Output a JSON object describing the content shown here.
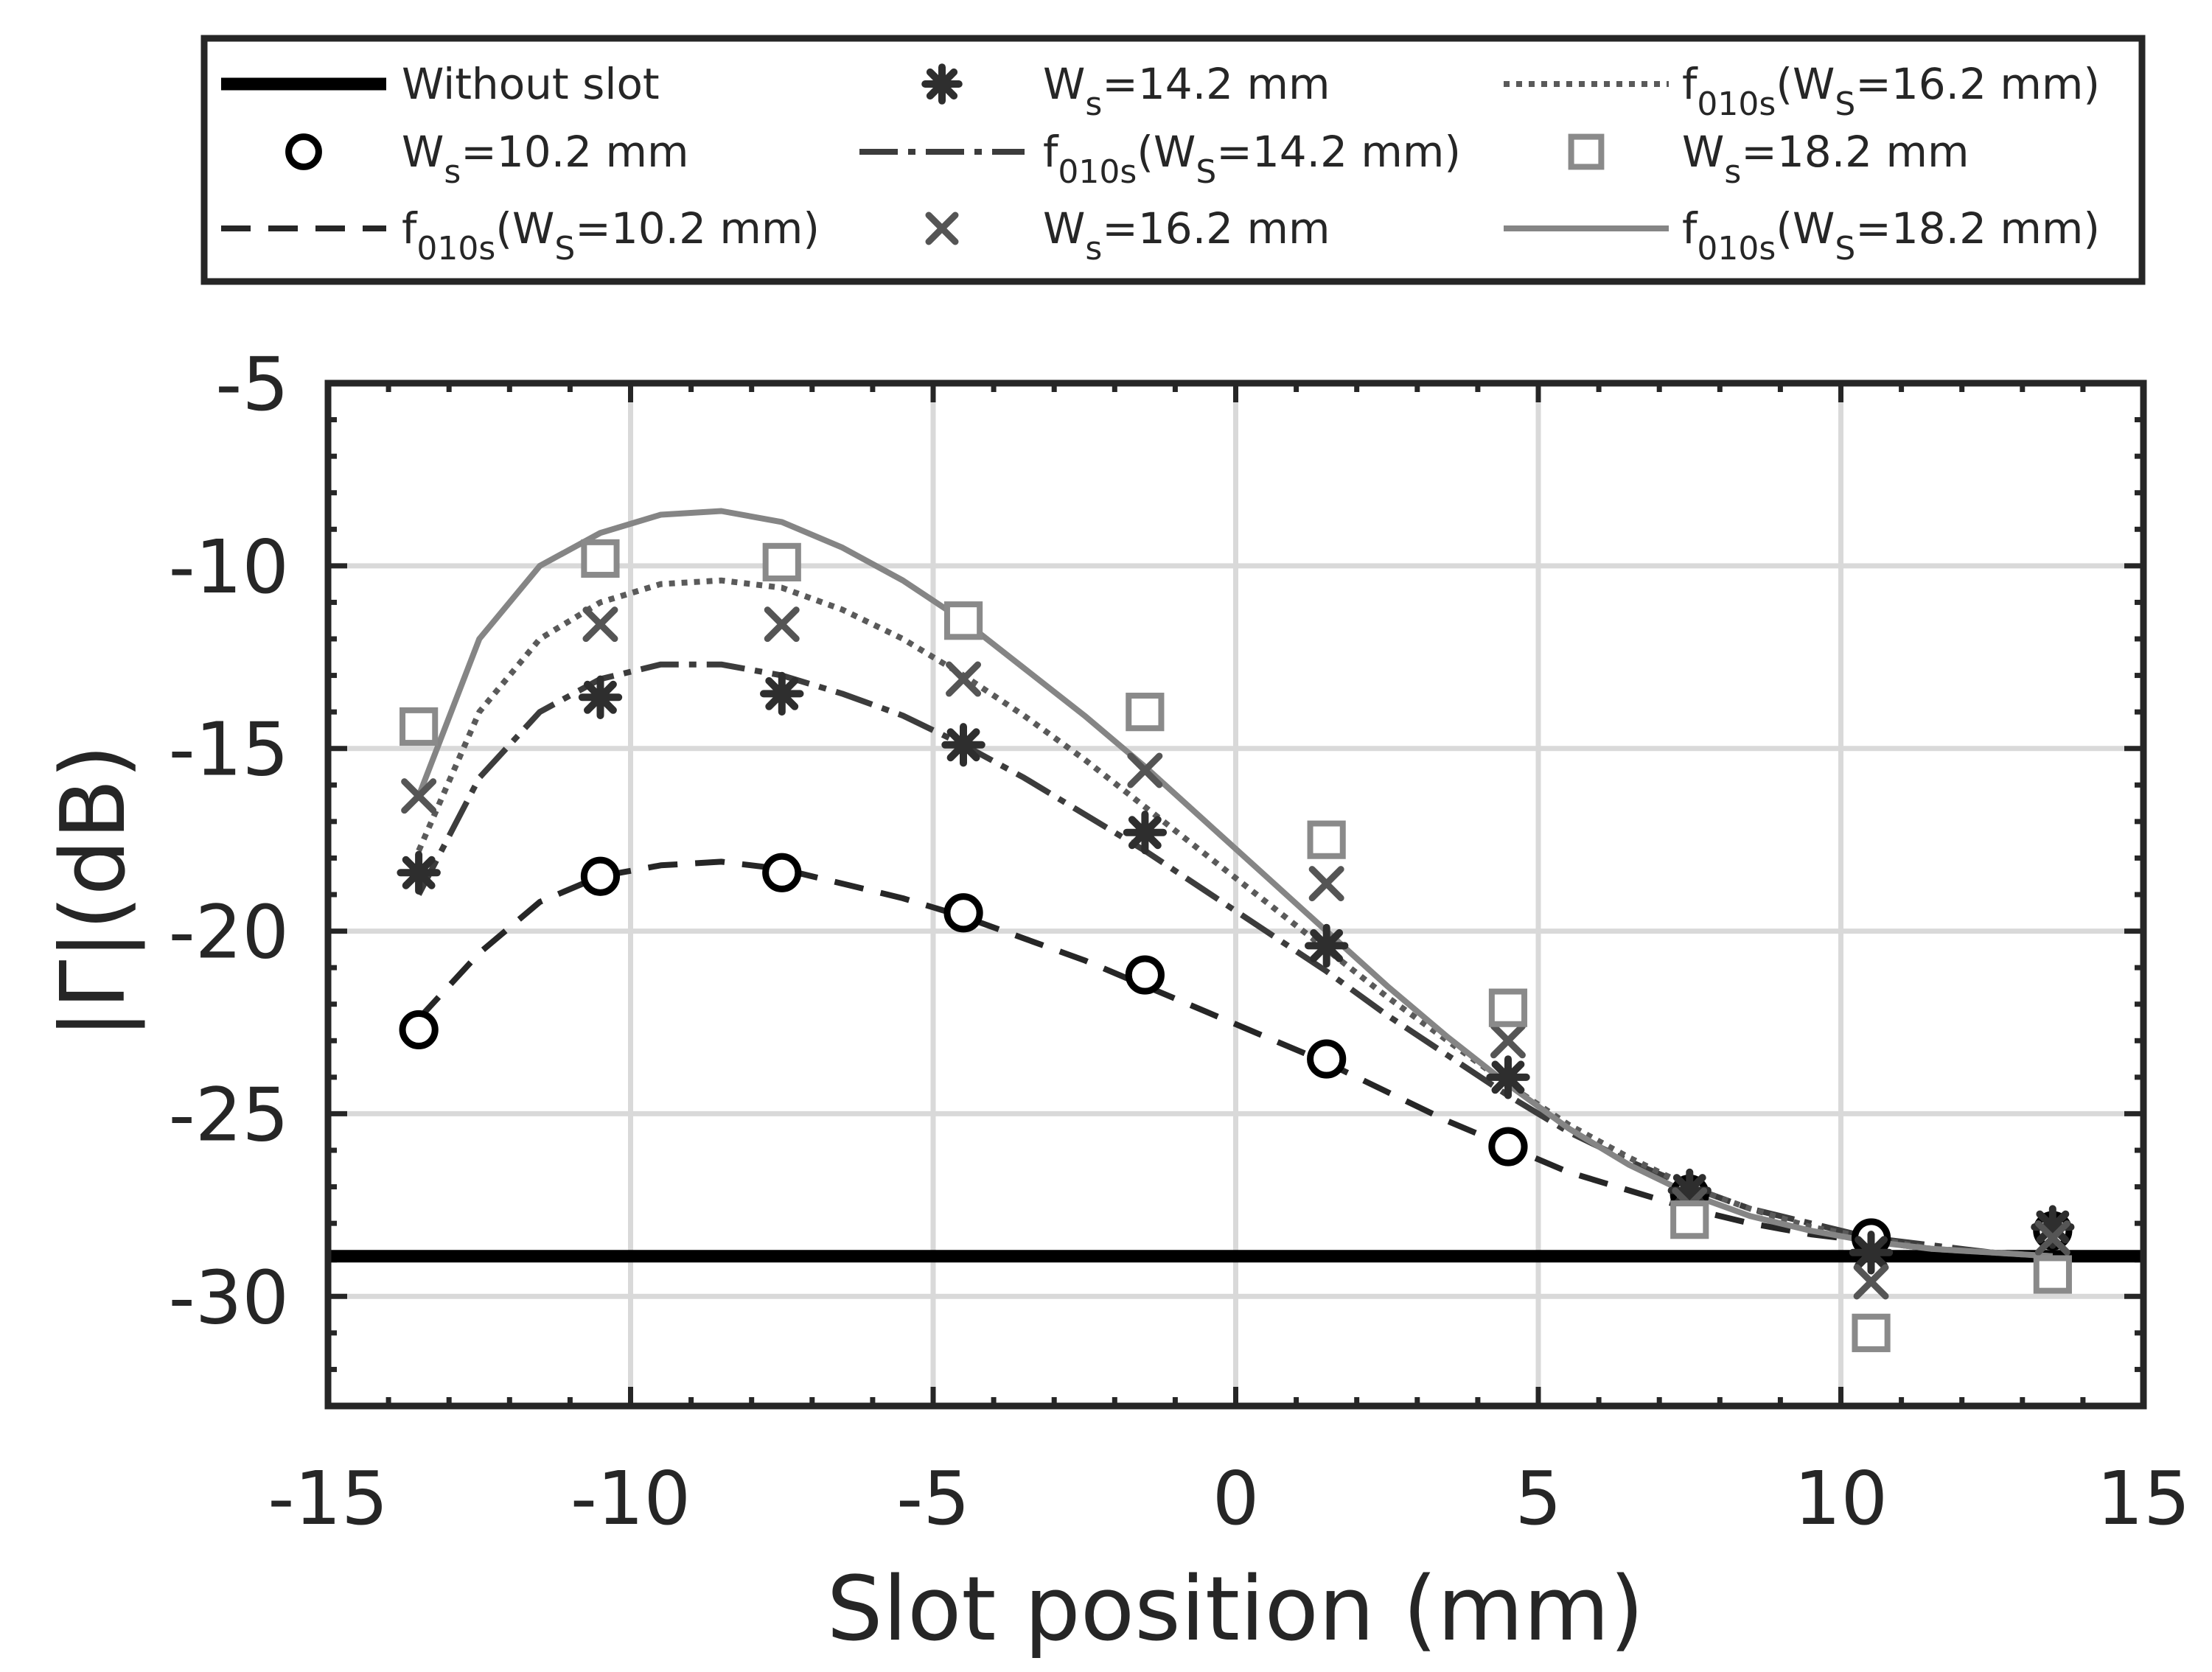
{
  "chart_data": {
    "type": "line",
    "xlabel": "Slot position (mm)",
    "ylabel": "|Γ|(dB)",
    "xlim": [
      -15,
      15
    ],
    "ylim": [
      -33,
      -5
    ],
    "xticks": [
      -15,
      -10,
      -5,
      0,
      5,
      10,
      15
    ],
    "yticks": [
      -5,
      -10,
      -15,
      -20,
      -25,
      -30
    ],
    "grid": true,
    "legend_position": "top",
    "x": [
      -13.5,
      -10.5,
      -7.5,
      -4.5,
      -1.5,
      1.5,
      4.5,
      7.5,
      10.5,
      13.5
    ],
    "reference": {
      "name": "Without slot",
      "value": -28.9,
      "color": "#000000"
    },
    "series": [
      {
        "name": "W_s=10.2 mm",
        "kind": "marker",
        "marker": "circle",
        "color": "#000000",
        "values": [
          -22.7,
          -18.5,
          -18.4,
          -19.5,
          -21.2,
          -23.5,
          -25.9,
          -27.2,
          -28.4,
          -28.2
        ]
      },
      {
        "name": "W_s=14.2 mm",
        "kind": "marker",
        "marker": "star",
        "color": "#2e2e2e",
        "values": [
          -18.4,
          -13.6,
          -13.5,
          -14.9,
          -17.3,
          -20.4,
          -24.0,
          -27.1,
          -28.8,
          -28.1
        ]
      },
      {
        "name": "W_s=16.2 mm",
        "kind": "marker",
        "marker": "x",
        "color": "#555555",
        "values": [
          -16.3,
          -11.6,
          -11.6,
          -13.1,
          -15.6,
          -18.7,
          -23.0,
          -27.5,
          -29.6,
          -28.4
        ]
      },
      {
        "name": "W_s=18.2 mm",
        "kind": "marker",
        "marker": "square",
        "color": "#8a8a8a",
        "values": [
          -14.4,
          -9.8,
          -9.9,
          -11.5,
          -14.0,
          -17.5,
          -22.1,
          -27.9,
          -31.0,
          -29.4
        ]
      },
      {
        "name": "f010s(W_S=10.2 mm)",
        "kind": "line",
        "dash": "40 24",
        "width": 8,
        "color": "#262626",
        "x": [
          -13.5,
          -12.5,
          -11.5,
          -10.5,
          -9.5,
          -8.5,
          -7.5,
          -6.5,
          -5.5,
          -4.5,
          -3.5,
          -2.5,
          -1.5,
          -0.5,
          0.5,
          1.5,
          2.5,
          3.5,
          4.5,
          5.5,
          6.5,
          7.5,
          8.5,
          9.5,
          10.5,
          11.5,
          12.5,
          13.5
        ],
        "values": [
          -22.4,
          -20.6,
          -19.2,
          -18.5,
          -18.2,
          -18.1,
          -18.3,
          -18.7,
          -19.1,
          -19.6,
          -20.2,
          -20.8,
          -21.5,
          -22.2,
          -22.9,
          -23.6,
          -24.4,
          -25.2,
          -25.9,
          -26.6,
          -27.1,
          -27.6,
          -28.0,
          -28.3,
          -28.5,
          -28.7,
          -28.8,
          -28.9
        ]
      },
      {
        "name": "f010s(W_S=14.2 mm)",
        "kind": "line",
        "dash": "52 14 10 14",
        "width": 8,
        "color": "#3c3c3c",
        "x": [
          -13.5,
          -12.5,
          -11.5,
          -10.5,
          -9.5,
          -8.5,
          -7.5,
          -6.5,
          -5.5,
          -4.5,
          -3.5,
          -2.5,
          -1.5,
          -0.5,
          0.5,
          1.5,
          2.5,
          3.5,
          4.5,
          5.5,
          6.5,
          7.5,
          8.5,
          9.5,
          10.5,
          11.5,
          12.5,
          13.5
        ],
        "values": [
          -19.0,
          -15.8,
          -14.0,
          -13.1,
          -12.7,
          -12.7,
          -13.0,
          -13.5,
          -14.1,
          -14.9,
          -15.8,
          -16.8,
          -17.8,
          -18.9,
          -20.0,
          -21.1,
          -22.3,
          -23.4,
          -24.5,
          -25.5,
          -26.3,
          -27.0,
          -27.6,
          -28.0,
          -28.4,
          -28.6,
          -28.8,
          -28.9
        ]
      },
      {
        "name": "f010s(W_S=16.2 mm)",
        "kind": "line",
        "dash": "8 9",
        "width": 8,
        "color": "#5a5a5a",
        "x": [
          -13.5,
          -12.5,
          -11.5,
          -10.5,
          -9.5,
          -8.5,
          -7.5,
          -6.5,
          -5.5,
          -4.5,
          -3.5,
          -2.5,
          -1.5,
          -0.5,
          0.5,
          1.5,
          2.5,
          3.5,
          4.5,
          5.5,
          6.5,
          7.5,
          8.5,
          9.5,
          10.5,
          11.5,
          12.5,
          13.5
        ],
        "values": [
          -17.8,
          -14.0,
          -12.0,
          -11.0,
          -10.5,
          -10.4,
          -10.6,
          -11.2,
          -12.0,
          -13.0,
          -14.1,
          -15.3,
          -16.6,
          -17.9,
          -19.2,
          -20.5,
          -21.8,
          -23.0,
          -24.2,
          -25.3,
          -26.2,
          -27.0,
          -27.6,
          -28.1,
          -28.4,
          -28.7,
          -28.8,
          -28.9
        ]
      },
      {
        "name": "f010s(W_S=18.2 mm)",
        "kind": "line",
        "dash": "",
        "width": 8,
        "color": "#858585",
        "x": [
          -13.5,
          -12.5,
          -11.5,
          -10.5,
          -9.5,
          -8.5,
          -7.5,
          -6.5,
          -5.5,
          -4.5,
          -3.5,
          -2.5,
          -1.5,
          -0.5,
          0.5,
          1.5,
          2.5,
          3.5,
          4.5,
          5.5,
          6.5,
          7.5,
          8.5,
          9.5,
          10.5,
          11.5,
          12.5,
          13.5
        ],
        "values": [
          -16.3,
          -12.0,
          -10.0,
          -9.1,
          -8.6,
          -8.5,
          -8.8,
          -9.5,
          -10.4,
          -11.5,
          -12.8,
          -14.1,
          -15.5,
          -17.0,
          -18.5,
          -20.0,
          -21.5,
          -22.9,
          -24.2,
          -25.4,
          -26.4,
          -27.2,
          -27.8,
          -28.2,
          -28.5,
          -28.7,
          -28.8,
          -28.9
        ]
      }
    ],
    "legend": {
      "entries": [
        {
          "key": "Without slot",
          "label": "Without slot"
        },
        {
          "key": "W_s=14.2 mm",
          "label_main": "W",
          "label_sub": "s",
          "label_rest": "=14.2 mm"
        },
        {
          "key": "f010s(W_S=16.2 mm)",
          "label_main": "f",
          "label_sub": "010s",
          "label_mid": "(W",
          "label_sub2": "S",
          "label_rest": "=16.2 mm)"
        },
        {
          "key": "W_s=10.2 mm",
          "label_main": "W",
          "label_sub": "s",
          "label_rest": "=10.2 mm"
        },
        {
          "key": "f010s(W_S=14.2 mm)",
          "label_main": "f",
          "label_sub": "010s",
          "label_mid": "(W",
          "label_sub2": "S",
          "label_rest": "=14.2 mm)"
        },
        {
          "key": "W_s=18.2 mm",
          "label_main": "W",
          "label_sub": "s",
          "label_rest": "=18.2 mm"
        },
        {
          "key": "f010s(W_S=10.2 mm)",
          "label_main": "f",
          "label_sub": "010s",
          "label_mid": "(W",
          "label_sub2": "S",
          "label_rest": "=10.2 mm)"
        },
        {
          "key": "W_s=16.2 mm",
          "label_main": "W",
          "label_sub": "s",
          "label_rest": "=16.2 mm"
        },
        {
          "key": "f010s(W_S=18.2 mm)",
          "label_main": "f",
          "label_sub": "010s",
          "label_mid": "(W",
          "label_sub2": "S",
          "label_rest": "=18.2 mm)"
        }
      ]
    }
  }
}
